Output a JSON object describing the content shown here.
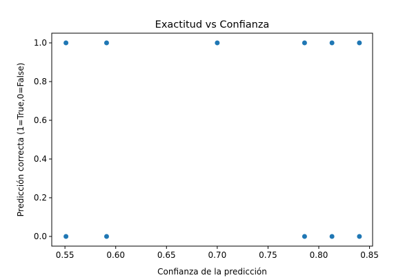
{
  "chart_data": {
    "type": "scatter",
    "title": "Exactitud vs Confianza",
    "xlabel": "Confianza de la predicción",
    "ylabel": "Predicción correcta (1=True,0=False)",
    "xlim": [
      0.537,
      0.853
    ],
    "ylim": [
      -0.05,
      1.05
    ],
    "grid": false,
    "color": "#1f77b4",
    "xticks": [
      0.55,
      0.6,
      0.65,
      0.7,
      0.75,
      0.8,
      0.85
    ],
    "xtick_labels": [
      "0.55",
      "0.60",
      "0.65",
      "0.70",
      "0.75",
      "0.80",
      "0.85"
    ],
    "yticks": [
      0.0,
      0.2,
      0.4,
      0.6,
      0.8,
      1.0
    ],
    "ytick_labels": [
      "0.0",
      "0.2",
      "0.4",
      "0.6",
      "0.8",
      "1.0"
    ],
    "points": [
      {
        "x": 0.551,
        "y": 1
      },
      {
        "x": 0.591,
        "y": 1
      },
      {
        "x": 0.7,
        "y": 1
      },
      {
        "x": 0.786,
        "y": 1
      },
      {
        "x": 0.813,
        "y": 1
      },
      {
        "x": 0.84,
        "y": 1
      },
      {
        "x": 0.551,
        "y": 0
      },
      {
        "x": 0.591,
        "y": 0
      },
      {
        "x": 0.786,
        "y": 0
      },
      {
        "x": 0.813,
        "y": 0
      },
      {
        "x": 0.84,
        "y": 0
      }
    ]
  }
}
